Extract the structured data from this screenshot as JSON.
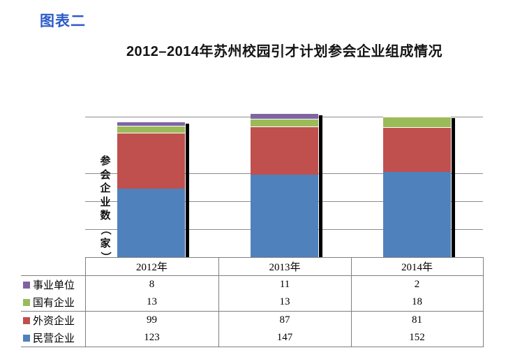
{
  "header": {
    "figure_label": "图表二"
  },
  "chart_data": {
    "type": "bar",
    "stacked": true,
    "title": "2012–2014年苏州校园引才计划参会企业组成情况",
    "ylabel": "参会企业数（家）",
    "xlabel": "",
    "categories": [
      "2012年",
      "2013年",
      "2014年"
    ],
    "series": [
      {
        "name": "事业单位",
        "color": "#8064A2",
        "values": [
          8,
          11,
          2
        ]
      },
      {
        "name": "国有企业",
        "color": "#9BBB59",
        "values": [
          13,
          13,
          18
        ]
      },
      {
        "name": "外资企业",
        "color": "#C0504D",
        "values": [
          99,
          87,
          81
        ]
      },
      {
        "name": "民营企业",
        "color": "#4F81BD",
        "values": [
          123,
          147,
          152
        ]
      }
    ],
    "totals": [
      243,
      258,
      253
    ],
    "ylim": [
      0,
      250
    ],
    "gridline_values": [
      50,
      100,
      150
    ],
    "grid": true,
    "legend_position": "left-of-data-table",
    "data_table_shown": true,
    "bar_shadow_color": "#000000",
    "gridline_color": "#8c8c8c",
    "table_border_color": "#7f7f7f",
    "figure_label_color": "#2b5bc8"
  }
}
